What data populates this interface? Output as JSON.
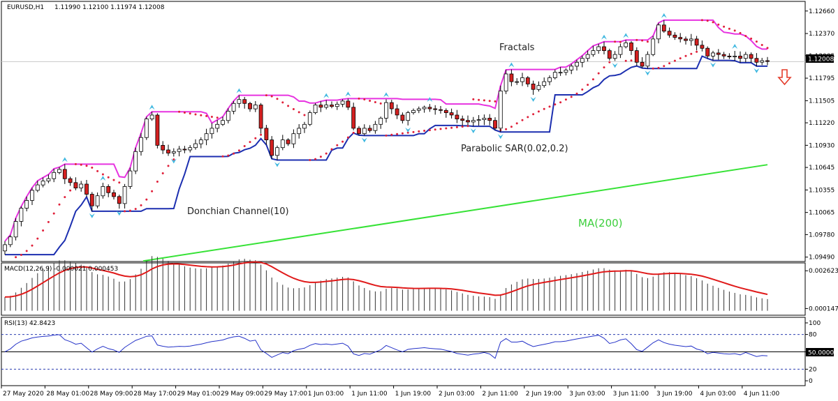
{
  "chart_data": {
    "type": "candlestick",
    "header": {
      "symbol": "EURUSD,H1",
      "ohlc": "1.11990 1.12100 1.11974 1.12008"
    },
    "price_axis": {
      "ticks": [
        "1.12660",
        "1.12370",
        "1.12085",
        "1.11795",
        "1.11505",
        "1.11220",
        "1.10930",
        "1.10645",
        "1.10355",
        "1.10065",
        "1.09780",
        "1.09490"
      ],
      "tick_values": [
        1.1266,
        1.1237,
        1.12085,
        1.11795,
        1.11505,
        1.1122,
        1.1093,
        1.10645,
        1.10355,
        1.10065,
        1.0978,
        1.0949
      ],
      "ylim": [
        1.0946,
        1.1273
      ],
      "current_price_label": "1.12008",
      "current_price": 1.12008
    },
    "time_axis": {
      "labels": [
        "27 May 2020",
        "28 May 01:00",
        "28 May 09:00",
        "28 May 17:00",
        "29 May 01:00",
        "29 May 09:00",
        "29 May 17:00",
        "1 Jun 03:00",
        "1 Jun 11:00",
        "1 Jun 19:00",
        "2 Jun 03:00",
        "2 Jun 11:00",
        "2 Jun 19:00",
        "3 Jun 03:00",
        "3 Jun 11:00",
        "3 Jun 19:00",
        "4 Jun 03:00",
        "4 Jun 11:00"
      ],
      "bars_per_label": 8
    },
    "annotations": {
      "fractals": "Fractals",
      "parabolic_sar": "Parabolic SAR(0.02,0.2)",
      "donchian": "Donchian Channel(10)",
      "ma": "MA(200)"
    },
    "signal": "down-arrow",
    "candles_close": [
      1.0965,
      1.0975,
      1.0995,
      1.1012,
      1.1022,
      1.1035,
      1.1042,
      1.1047,
      1.105,
      1.1058,
      1.1062,
      1.105,
      1.1045,
      1.1038,
      1.1043,
      1.103,
      1.1015,
      1.1028,
      1.104,
      1.1032,
      1.1027,
      1.1018,
      1.104,
      1.106,
      1.1085,
      1.1103,
      1.1127,
      1.1132,
      1.1093,
      1.1087,
      1.1083,
      1.1085,
      1.1088,
      1.1087,
      1.109,
      1.1095,
      1.11,
      1.1108,
      1.1115,
      1.112,
      1.1125,
      1.1137,
      1.1147,
      1.1152,
      1.1147,
      1.114,
      1.1145,
      1.1115,
      1.11,
      1.108,
      1.109,
      1.11,
      1.1095,
      1.1108,
      1.1115,
      1.112,
      1.1135,
      1.1145,
      1.1142,
      1.1145,
      1.1143,
      1.1146,
      1.115,
      1.1142,
      1.1115,
      1.1108,
      1.1115,
      1.1112,
      1.112,
      1.1128,
      1.1148,
      1.114,
      1.1132,
      1.1125,
      1.1135,
      1.1138,
      1.114,
      1.1142,
      1.114,
      1.1139,
      1.1138,
      1.1135,
      1.1132,
      1.1127,
      1.1125,
      1.1123,
      1.1125,
      1.1126,
      1.1128,
      1.1125,
      1.1115,
      1.1163,
      1.1185,
      1.1175,
      1.1175,
      1.118,
      1.1172,
      1.1165,
      1.117,
      1.1175,
      1.118,
      1.1187,
      1.1187,
      1.119,
      1.1195,
      1.12,
      1.1205,
      1.121,
      1.1215,
      1.122,
      1.1215,
      1.1205,
      1.121,
      1.122,
      1.1225,
      1.1215,
      1.12,
      1.1195,
      1.121,
      1.123,
      1.1248,
      1.124,
      1.1235,
      1.1232,
      1.123,
      1.1228,
      1.123,
      1.1222,
      1.1218,
      1.1208,
      1.1212,
      1.121,
      1.1208,
      1.1207,
      1.1208,
      1.1205,
      1.121,
      1.1205,
      1.12,
      1.1202,
      1.1201
    ],
    "ma200": {
      "start": 1.0944,
      "end": 1.1068
    },
    "macd": {
      "label": "MACD(12,26,9) -0.000021 0.000453",
      "ticks": [
        "0.002623",
        "0.000147"
      ],
      "tick_values": [
        0.002623,
        0.000147
      ],
      "ylim": [
        -0.0002,
        0.003
      ]
    },
    "rsi": {
      "label": "RSI(13) 42.8423",
      "ticks": [
        "100",
        "80",
        "50",
        "20",
        "0"
      ],
      "tick_values": [
        100,
        80,
        50,
        20,
        0
      ],
      "level_label": "50.0000",
      "ylim": [
        -6,
        106
      ]
    }
  }
}
